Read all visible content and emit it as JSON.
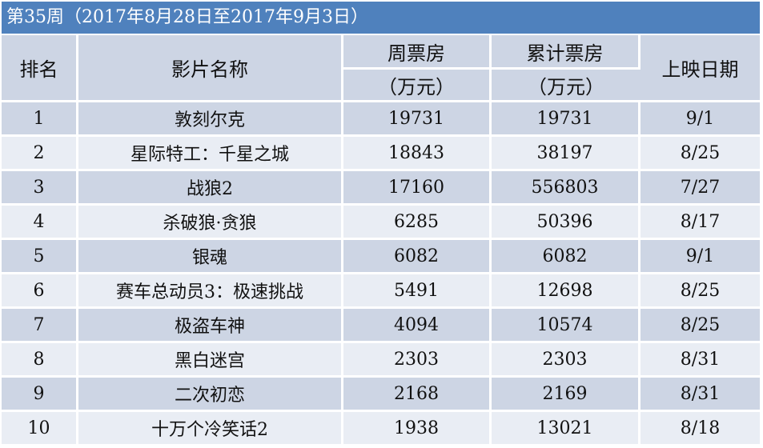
{
  "title": "第35周（2017年8月28日至2017年9月3日）",
  "headers": {
    "rank": "排名",
    "film": "影片名称",
    "weekly_line1": "周票房",
    "weekly_line2": "（万元）",
    "cumulative_line1": "累计票房",
    "cumulative_line2": "（万元）",
    "release": "上映日期"
  },
  "rows": [
    {
      "rank": "1",
      "film": "敦刻尔克",
      "weekly": "19731",
      "cumulative": "19731",
      "release": "9/1"
    },
    {
      "rank": "2",
      "film": "星际特工：千星之城",
      "weekly": "18843",
      "cumulative": "38197",
      "release": "8/25"
    },
    {
      "rank": "3",
      "film": "战狼2",
      "weekly": "17160",
      "cumulative": "556803",
      "release": "7/27"
    },
    {
      "rank": "4",
      "film": "杀破狼·贪狼",
      "weekly": "6285",
      "cumulative": "50396",
      "release": "8/17"
    },
    {
      "rank": "5",
      "film": "银魂",
      "weekly": "6082",
      "cumulative": "6082",
      "release": "9/1"
    },
    {
      "rank": "6",
      "film": "赛车总动员3：极速挑战",
      "weekly": "5491",
      "cumulative": "12698",
      "release": "8/25"
    },
    {
      "rank": "7",
      "film": "极盗车神",
      "weekly": "4094",
      "cumulative": "10574",
      "release": "8/25"
    },
    {
      "rank": "8",
      "film": "黑白迷宫",
      "weekly": "2303",
      "cumulative": "2303",
      "release": "8/31"
    },
    {
      "rank": "9",
      "film": "二次初恋",
      "weekly": "2168",
      "cumulative": "2169",
      "release": "8/31"
    },
    {
      "rank": "10",
      "film": "十万个冷笑话2",
      "weekly": "1938",
      "cumulative": "13021",
      "release": "8/18"
    }
  ]
}
